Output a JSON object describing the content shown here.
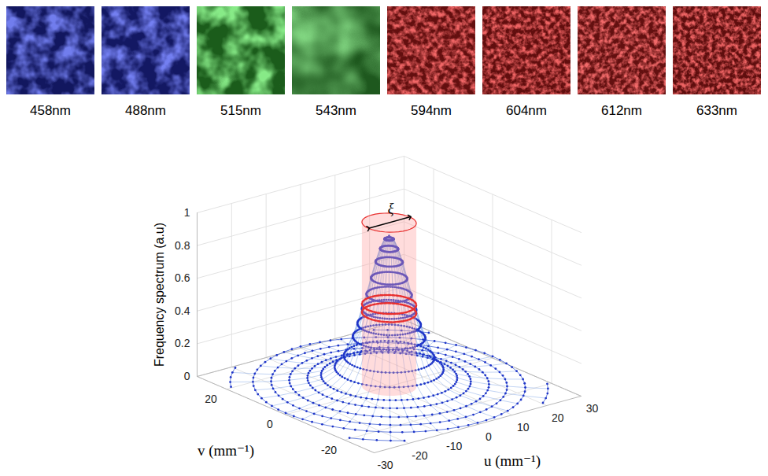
{
  "images": [
    {
      "label": "458nm",
      "color": "#2a34d8"
    },
    {
      "label": "488nm",
      "color": "#2c36e0"
    },
    {
      "label": "515nm",
      "color": "#3ed23e"
    },
    {
      "label": "543nm",
      "color": "#44c844"
    },
    {
      "label": "594nm",
      "color": "#e02222"
    },
    {
      "label": "604nm",
      "color": "#dc2020"
    },
    {
      "label": "612nm",
      "color": "#e02424"
    },
    {
      "label": "633nm",
      "color": "#d82020"
    }
  ],
  "chart_data": {
    "type": "surface3d",
    "zlabel": "Frequency spectrum (a.u)",
    "xlabel": "u (mm⁻¹)",
    "ylabel": "v (mm⁻¹)",
    "xlim": [
      -30,
      30
    ],
    "xticks": [
      -30,
      -20,
      -10,
      0,
      10,
      20,
      30
    ],
    "ylim": [
      -30,
      30
    ],
    "yticks": [
      -20,
      0,
      20
    ],
    "zlim": [
      0,
      1
    ],
    "zticks": [
      0,
      0.2,
      0.4,
      0.6,
      0.8,
      1
    ],
    "grid": true,
    "marker": "dot",
    "color": "#1f35c8",
    "radial_profile": {
      "r": [
        0,
        1,
        2,
        3,
        4,
        5,
        6,
        7,
        8,
        10,
        12,
        15,
        18,
        22,
        26,
        30,
        35,
        42.5
      ],
      "values": [
        0.92,
        0.9,
        0.84,
        0.76,
        0.66,
        0.56,
        0.47,
        0.38,
        0.3,
        0.18,
        0.11,
        0.06,
        0.04,
        0.025,
        0.015,
        0.01,
        0.006,
        0.004
      ]
    },
    "cutoff": {
      "label": "ξ",
      "diameter": 12,
      "levels": [
        0.5,
        0.45
      ],
      "color": "#e8302f"
    }
  }
}
